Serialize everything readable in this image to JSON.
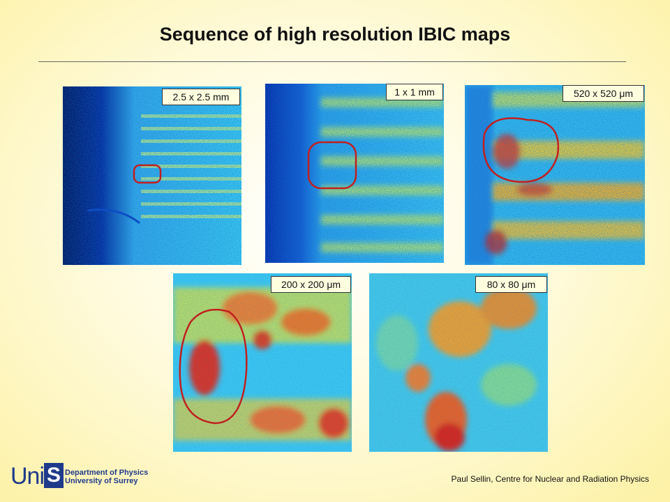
{
  "header": {
    "title": "Sequence of high resolution IBIC maps"
  },
  "maps": [
    {
      "label": "2.5 x 2.5 mm"
    },
    {
      "label": "1 x 1 mm"
    },
    {
      "label": "520 x 520 μm"
    },
    {
      "label": "200 x 200 μm"
    },
    {
      "label": "80 x 80 μm"
    }
  ],
  "footer": {
    "logo": [
      "Uni",
      "S"
    ],
    "department": "Department of Physics",
    "university": "University of Surrey",
    "credit": "Paul Sellin, Centre for Nuclear and Radiation Physics"
  }
}
